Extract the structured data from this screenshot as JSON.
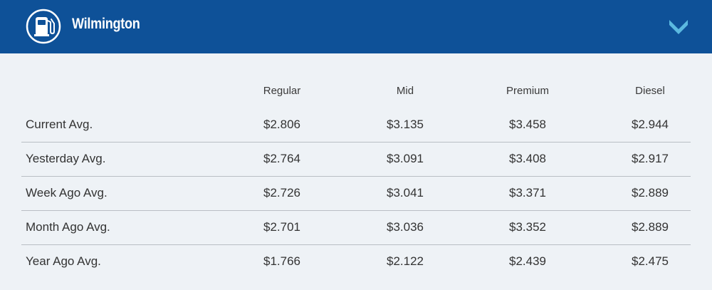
{
  "header": {
    "title": "Wilmington",
    "icon": "gas-pump-icon",
    "toggle_icon": "chevron-down-icon",
    "background_color": "#0e5198",
    "accent_color": "#5bb9e0"
  },
  "table": {
    "columns": [
      "Regular",
      "Mid",
      "Premium",
      "Diesel"
    ],
    "rows": [
      {
        "label": "Current Avg.",
        "values": [
          "$2.806",
          "$3.135",
          "$3.458",
          "$2.944"
        ]
      },
      {
        "label": "Yesterday Avg.",
        "values": [
          "$2.764",
          "$3.091",
          "$3.408",
          "$2.917"
        ]
      },
      {
        "label": "Week Ago Avg.",
        "values": [
          "$2.726",
          "$3.041",
          "$3.371",
          "$2.889"
        ]
      },
      {
        "label": "Month Ago Avg.",
        "values": [
          "$2.701",
          "$3.036",
          "$3.352",
          "$2.889"
        ]
      },
      {
        "label": "Year Ago Avg.",
        "values": [
          "$1.766",
          "$2.122",
          "$2.439",
          "$2.475"
        ]
      }
    ]
  }
}
